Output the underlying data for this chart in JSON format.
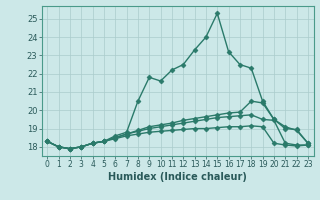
{
  "title": "",
  "xlabel": "Humidex (Indice chaleur)",
  "bg_color": "#cce8e8",
  "grid_color": "#aacccc",
  "line_color": "#2a7a6a",
  "xlim": [
    -0.5,
    23.5
  ],
  "ylim": [
    17.5,
    25.7
  ],
  "xticks": [
    0,
    1,
    2,
    3,
    4,
    5,
    6,
    7,
    8,
    9,
    10,
    11,
    12,
    13,
    14,
    15,
    16,
    17,
    18,
    19,
    20,
    21,
    22,
    23
  ],
  "yticks": [
    18,
    19,
    20,
    21,
    22,
    23,
    24,
    25
  ],
  "series": [
    [
      18.3,
      18.0,
      17.9,
      18.0,
      18.2,
      18.3,
      18.6,
      18.8,
      20.5,
      21.8,
      21.6,
      22.2,
      22.5,
      23.3,
      24.0,
      25.3,
      23.2,
      22.5,
      22.3,
      20.5,
      19.5,
      19.1,
      18.9,
      18.2
    ],
    [
      18.3,
      18.0,
      17.9,
      18.0,
      18.2,
      18.3,
      18.5,
      18.7,
      18.9,
      19.1,
      19.2,
      19.3,
      19.45,
      19.55,
      19.65,
      19.75,
      19.85,
      19.9,
      20.5,
      20.4,
      19.5,
      19.0,
      18.95,
      18.2
    ],
    [
      18.3,
      18.0,
      17.9,
      18.0,
      18.2,
      18.3,
      18.5,
      18.7,
      18.85,
      19.0,
      19.1,
      19.2,
      19.3,
      19.4,
      19.5,
      19.6,
      19.65,
      19.7,
      19.75,
      19.5,
      19.45,
      18.2,
      18.1,
      18.1
    ],
    [
      18.3,
      18.0,
      17.9,
      18.0,
      18.2,
      18.3,
      18.45,
      18.6,
      18.7,
      18.8,
      18.85,
      18.9,
      18.95,
      19.0,
      19.0,
      19.05,
      19.1,
      19.1,
      19.15,
      19.1,
      18.2,
      18.1,
      18.05,
      18.1
    ]
  ],
  "marker": "D",
  "markersize": 2.5,
  "linewidth": 1.0
}
